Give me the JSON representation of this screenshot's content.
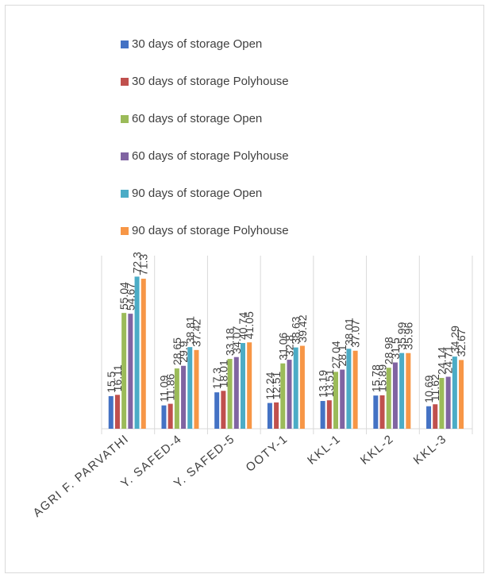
{
  "chart_data": {
    "type": "bar",
    "categories": [
      "AGRI F. PARVATHI",
      "Y. SAFED-4",
      "Y. SAFED-5",
      "OOTY-1",
      "KKL-1",
      "KKL-2",
      "KKL-3"
    ],
    "series": [
      {
        "name": "30 days of storage Open",
        "color": "#4472c4",
        "values": [
          15.5,
          11.09,
          17.3,
          12.24,
          13.19,
          15.78,
          10.69
        ]
      },
      {
        "name": "30 days of storage Polyhouse",
        "color": "#c0504d",
        "values": [
          16.11,
          11.86,
          18.01,
          12.51,
          13.51,
          15.89,
          11.62
        ]
      },
      {
        "name": "60 days of storage Open",
        "color": "#9bbb59",
        "values": [
          55.04,
          28.65,
          33.18,
          31.06,
          27.04,
          28.98,
          24.14
        ]
      },
      {
        "name": "60 days of storage Polyhouse",
        "color": "#8064a2",
        "values": [
          54.67,
          29.9,
          34.07,
          32.8,
          28.1,
          31.5,
          24.71
        ]
      },
      {
        "name": "90 days of storage Open",
        "color": "#4bacc6",
        "values": [
          72.3,
          38.81,
          40.74,
          38.63,
          38.01,
          35.99,
          34.29
        ]
      },
      {
        "name": "90 days of storage Polyhouse",
        "color": "#f79646",
        "values": [
          71.3,
          37.42,
          41.05,
          39.42,
          37.07,
          35.96,
          32.67
        ]
      }
    ],
    "ylim": [
      0,
      80
    ]
  }
}
